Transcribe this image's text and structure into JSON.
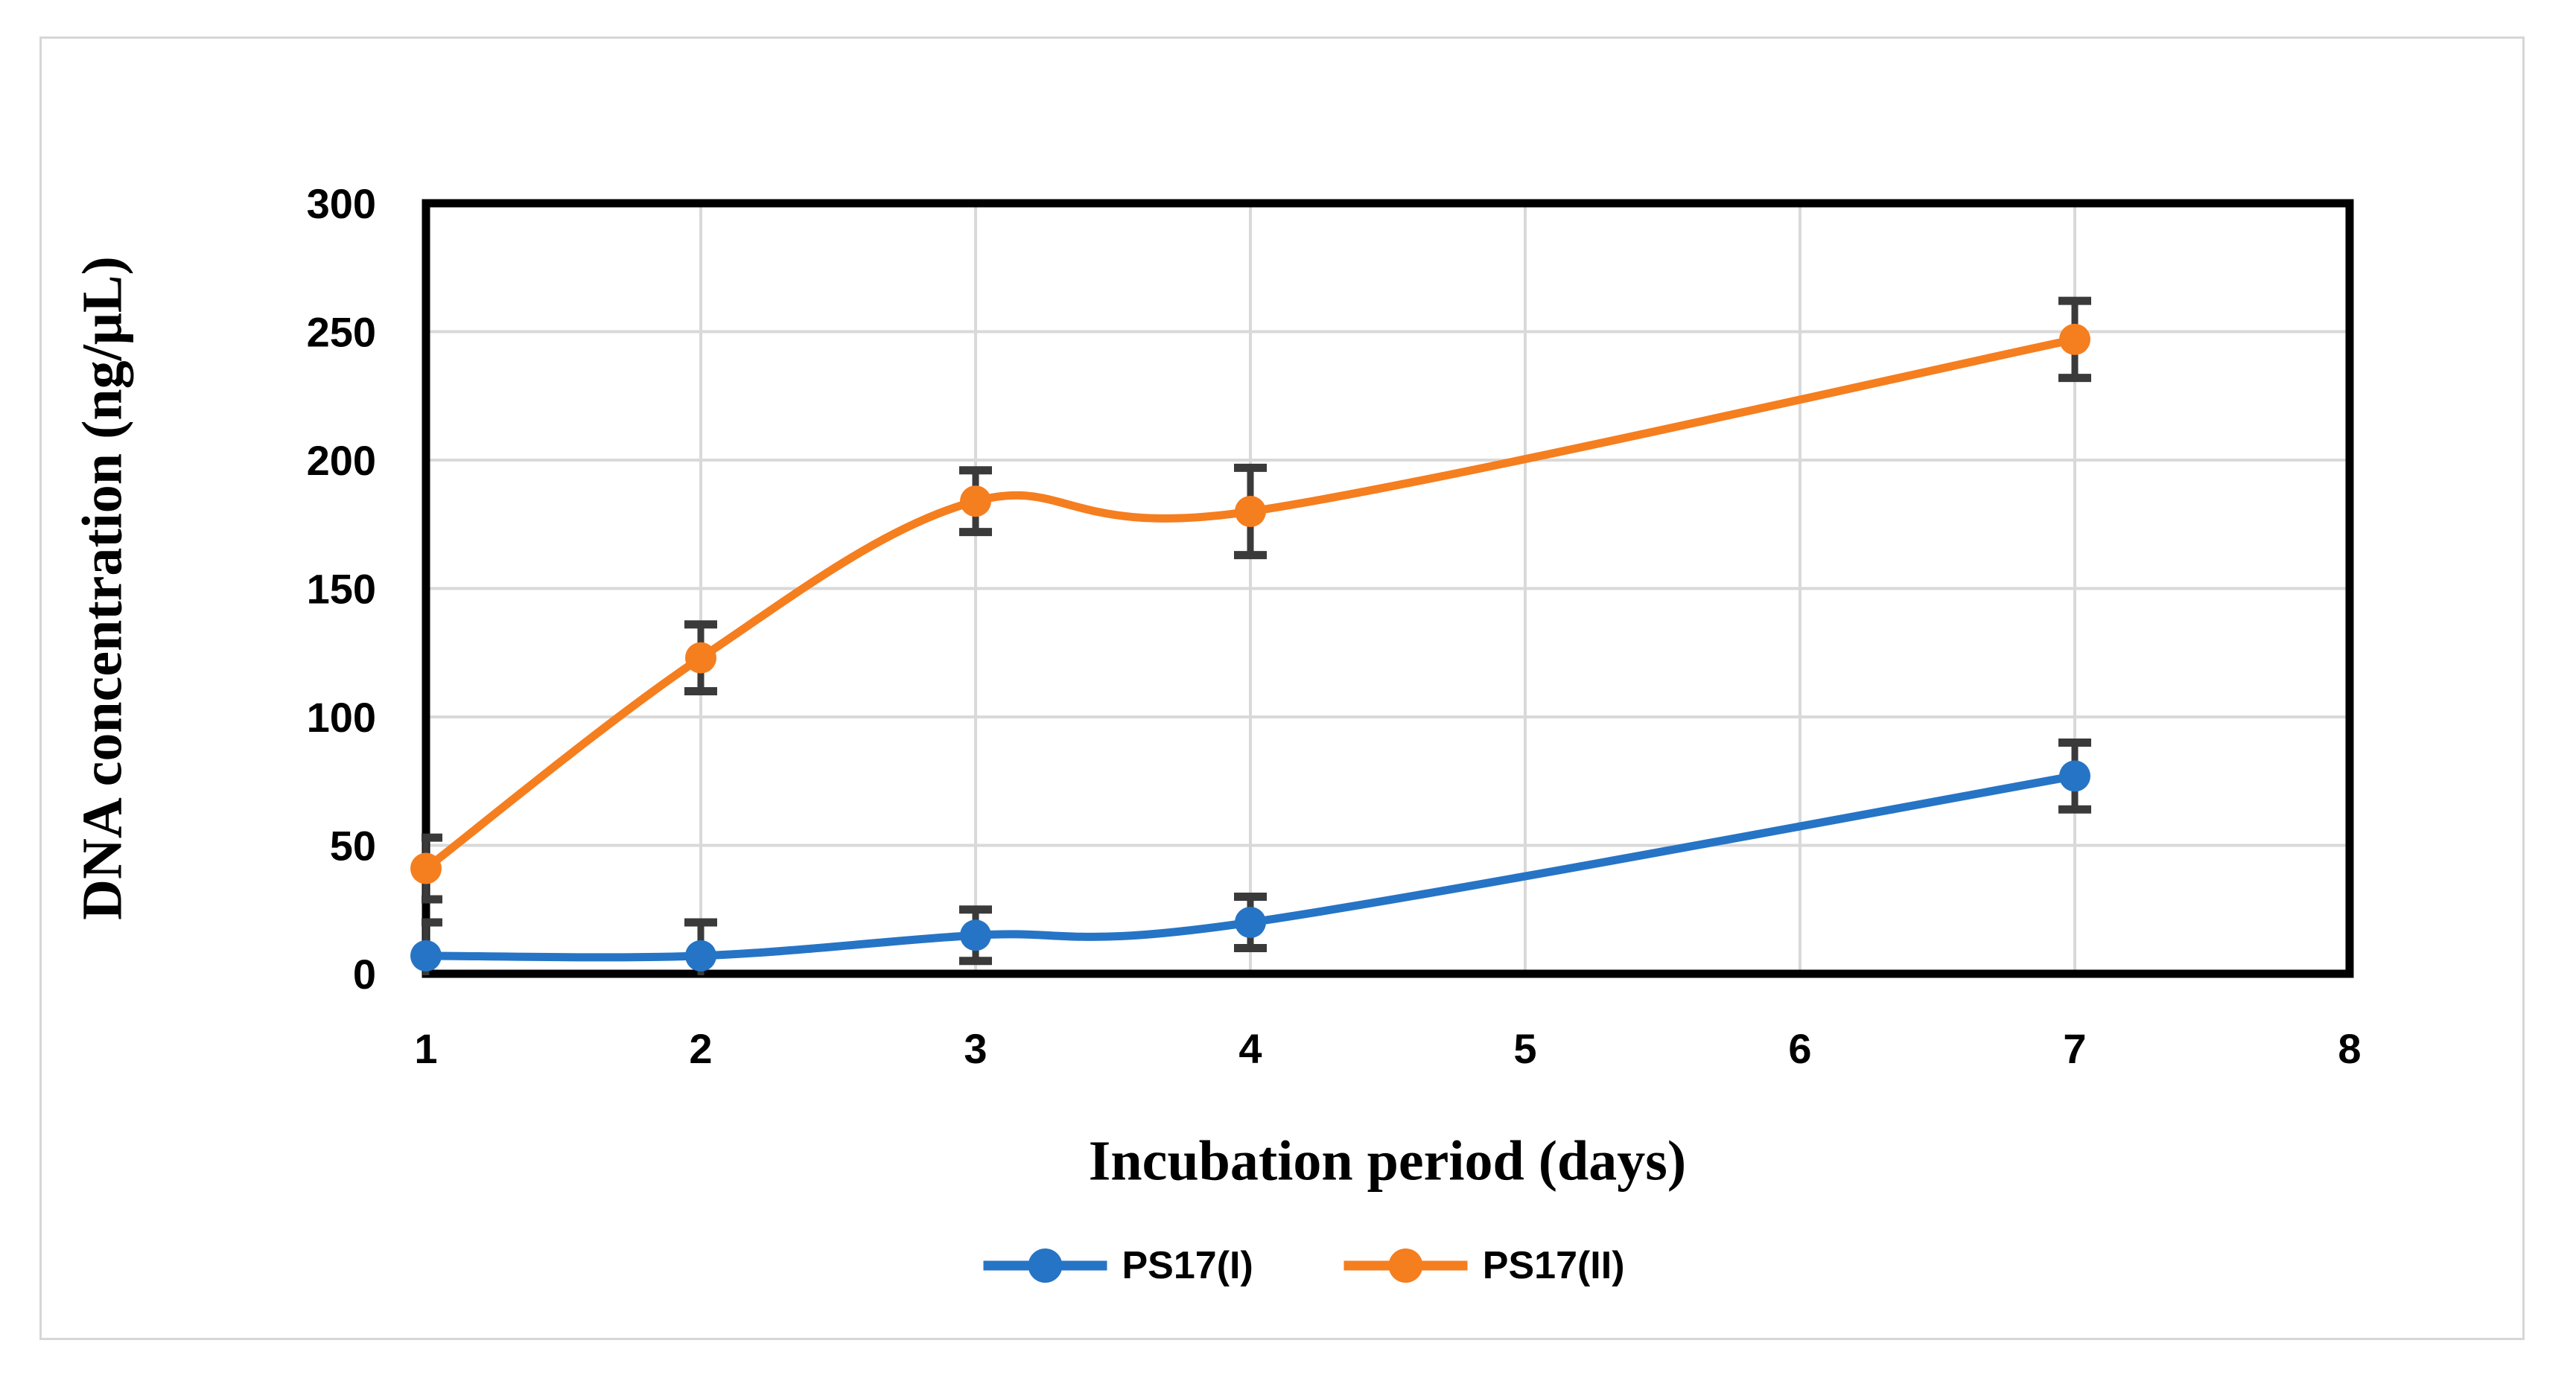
{
  "figure": {
    "background": "#ffffff",
    "frame_border_color": "#d6d6d6"
  },
  "chart_data": {
    "type": "line",
    "title": "",
    "xlabel": "Incubation period (days)",
    "ylabel": "DNA concentration (ng/μL)",
    "x": [
      1,
      2,
      3,
      4,
      7
    ],
    "xlim": [
      1,
      8
    ],
    "ylim": [
      0,
      300
    ],
    "x_ticks": [
      1,
      2,
      3,
      4,
      5,
      6,
      7,
      8
    ],
    "y_ticks": [
      0,
      50,
      100,
      150,
      200,
      250,
      300
    ],
    "grid": true,
    "smooth": true,
    "legend_position": "bottom",
    "series": [
      {
        "name": "PS17(I)",
        "color": "#2674C5",
        "values": [
          7,
          7,
          15,
          20,
          77
        ],
        "error": [
          13,
          13,
          10,
          10,
          13
        ]
      },
      {
        "name": "PS17(II)",
        "color": "#F57E1F",
        "values": [
          41,
          123,
          184,
          180,
          247
        ],
        "error": [
          12,
          13,
          12,
          17,
          15
        ]
      }
    ],
    "error_bar_color": "#3a3a3a",
    "gridline_color": "#d9d9d9",
    "axis_color": "#000000"
  }
}
